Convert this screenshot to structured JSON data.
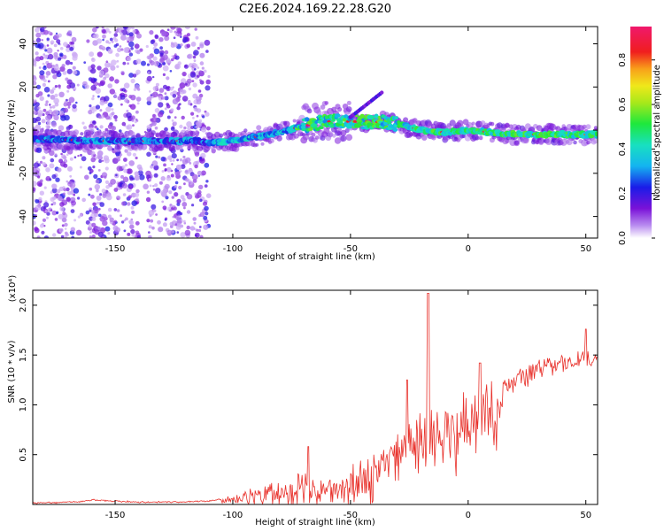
{
  "title": "C2E6.2024.169.22.28.G20",
  "colors": {
    "snr_line": "#e8302a",
    "axis": "#000000"
  },
  "chart_data": [
    {
      "type": "heatmap",
      "xlabel": "Height of straight line (km)",
      "ylabel": "Frequency (Hz)",
      "xlim": [
        -185,
        55
      ],
      "ylim": [
        -50,
        48
      ],
      "x_ticks": [
        "-150",
        "-100",
        "-50",
        "0",
        "50"
      ],
      "x_tick_values": [
        -150,
        -100,
        -50,
        0,
        50
      ],
      "y_ticks": [
        "40",
        "20",
        "0",
        "-20",
        "-40"
      ],
      "y_tick_values": [
        40,
        20,
        0,
        -20,
        -40
      ],
      "colorbar": {
        "label": "Normalized spectral amplitude",
        "range": [
          0,
          0.95
        ],
        "ticks": [
          "0.0",
          "0.2",
          "0.4",
          "0.6",
          "0.8"
        ],
        "tick_values": [
          0.0,
          0.2,
          0.4,
          0.6,
          0.8
        ]
      },
      "ridge": [
        {
          "x": -185,
          "y": -4
        },
        {
          "x": -160,
          "y": -5
        },
        {
          "x": -140,
          "y": -5
        },
        {
          "x": -115,
          "y": -5
        },
        {
          "x": -110,
          "y": -6
        },
        {
          "x": -100,
          "y": -5
        },
        {
          "x": -90,
          "y": -3
        },
        {
          "x": -80,
          "y": -1
        },
        {
          "x": -70,
          "y": 2
        },
        {
          "x": -60,
          "y": 4
        },
        {
          "x": -50,
          "y": 4
        },
        {
          "x": -40,
          "y": 4
        },
        {
          "x": -30,
          "y": 3
        },
        {
          "x": -20,
          "y": 0
        },
        {
          "x": -10,
          "y": -1
        },
        {
          "x": 0,
          "y": 0
        },
        {
          "x": 20,
          "y": -2
        },
        {
          "x": 40,
          "y": -2
        },
        {
          "x": 55,
          "y": -2
        }
      ],
      "grid": false
    },
    {
      "type": "line",
      "xlabel": "Height of straight line (km)",
      "ylabel": "SNR (10 * v/v)",
      "y_multiplier": "(x10⁴)",
      "xlim": [
        -185,
        55
      ],
      "ylim": [
        0,
        2.15
      ],
      "x_ticks": [
        "-150",
        "-100",
        "-50",
        "0",
        "50"
      ],
      "x_tick_values": [
        -150,
        -100,
        -50,
        0,
        50
      ],
      "y_ticks": [
        "0.5",
        "1.0",
        "1.5",
        "2.0"
      ],
      "y_tick_values": [
        0.5,
        1.0,
        1.5,
        2.0
      ],
      "envelope": [
        {
          "x": -185,
          "y": 0.02
        },
        {
          "x": -165,
          "y": 0.03
        },
        {
          "x": -160,
          "y": 0.05
        },
        {
          "x": -140,
          "y": 0.03
        },
        {
          "x": -120,
          "y": 0.03
        },
        {
          "x": -110,
          "y": 0.04
        },
        {
          "x": -100,
          "y": 0.08
        },
        {
          "x": -90,
          "y": 0.15
        },
        {
          "x": -80,
          "y": 0.22
        },
        {
          "x": -70,
          "y": 0.28
        },
        {
          "x": -60,
          "y": 0.22
        },
        {
          "x": -50,
          "y": 0.3
        },
        {
          "x": -45,
          "y": 0.45
        },
        {
          "x": -40,
          "y": 0.55
        },
        {
          "x": -30,
          "y": 0.7
        },
        {
          "x": -20,
          "y": 0.8
        },
        {
          "x": -10,
          "y": 0.95
        },
        {
          "x": 0,
          "y": 1.05
        },
        {
          "x": 10,
          "y": 1.15
        },
        {
          "x": 20,
          "y": 1.3
        },
        {
          "x": 30,
          "y": 1.45
        },
        {
          "x": 40,
          "y": 1.5
        },
        {
          "x": 50,
          "y": 1.52
        },
        {
          "x": 55,
          "y": 1.55
        }
      ],
      "peaks": [
        {
          "x": -17,
          "y": 2.12
        },
        {
          "x": -68,
          "y": 0.58
        },
        {
          "x": 5,
          "y": 1.42
        },
        {
          "x": 50,
          "y": 1.76
        },
        {
          "x": -26,
          "y": 1.25
        }
      ],
      "grid": false
    }
  ]
}
